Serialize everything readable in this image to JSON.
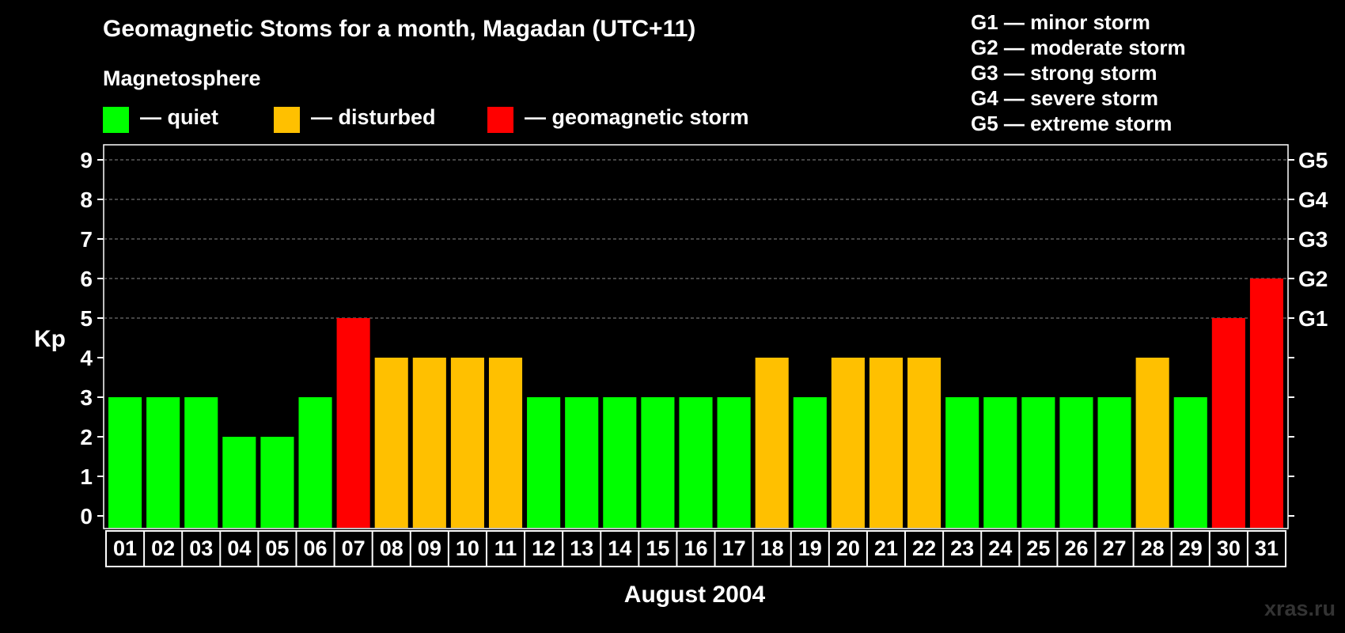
{
  "title": "Geomagnetic Stoms for a month, Magadan (UTC+11)",
  "legend": {
    "heading": "Magnetosphere",
    "items": [
      {
        "label": "— quiet",
        "color": "#00ff00"
      },
      {
        "label": "— disturbed",
        "color": "#ffc000"
      },
      {
        "label": "— geomagnetic storm",
        "color": "#ff0000"
      }
    ]
  },
  "g_scale": [
    "G1 — minor storm",
    "G2 — moderate storm",
    "G3 — strong storm",
    "G4 — severe storm",
    "G5 — extreme storm"
  ],
  "watermark": "xras.ru",
  "chart_data": {
    "type": "bar",
    "title": "Geomagnetic Stoms for a month, Magadan (UTC+11)",
    "xlabel": "August 2004",
    "ylabel": "Kp",
    "ylim": [
      0,
      9
    ],
    "yticks": [
      "0",
      "1",
      "2",
      "3",
      "4",
      "5",
      "6",
      "7",
      "8",
      "9"
    ],
    "right_ticks": [
      {
        "kp": 5,
        "label": "G1"
      },
      {
        "kp": 6,
        "label": "G2"
      },
      {
        "kp": 7,
        "label": "G3"
      },
      {
        "kp": 8,
        "label": "G4"
      },
      {
        "kp": 9,
        "label": "G5"
      }
    ],
    "grid": true,
    "categories": [
      "01",
      "02",
      "03",
      "04",
      "05",
      "06",
      "07",
      "08",
      "09",
      "10",
      "11",
      "12",
      "13",
      "14",
      "15",
      "16",
      "17",
      "18",
      "19",
      "20",
      "21",
      "22",
      "23",
      "24",
      "25",
      "26",
      "27",
      "28",
      "29",
      "30",
      "31"
    ],
    "values": [
      3,
      3,
      3,
      2,
      2,
      3,
      5,
      4,
      4,
      4,
      4,
      3,
      3,
      3,
      3,
      3,
      3,
      4,
      3,
      4,
      4,
      4,
      3,
      3,
      3,
      3,
      3,
      4,
      3,
      5,
      6
    ],
    "colors": {
      "quiet": "#00ff00",
      "disturbed": "#ffc000",
      "storm": "#ff0000"
    }
  }
}
